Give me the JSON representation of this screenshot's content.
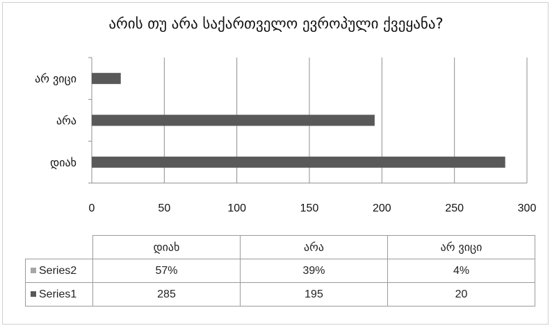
{
  "chart_data": {
    "type": "bar",
    "orientation": "horizontal",
    "title": "არის თუ არა საქართველო ევროპული ქვეყანა?",
    "categories": [
      "დიახ",
      "არა",
      "არ ვიცი"
    ],
    "series": [
      {
        "name": "Series1",
        "values": [
          285,
          195,
          20
        ],
        "color": "#595959",
        "plotted": true
      },
      {
        "name": "Series2",
        "values": [
          "57%",
          "39%",
          "4%"
        ],
        "color": "#a6a6a6",
        "plotted": false
      }
    ],
    "xlim": [
      0,
      300
    ],
    "x_ticks": [
      0,
      50,
      100,
      150,
      200,
      250,
      300
    ],
    "grid": "vertical",
    "legend": "data-table",
    "data_table": {
      "headers": [
        "დიახ",
        "არა",
        "არ ვიცი"
      ],
      "rows": [
        {
          "label": "Series2",
          "values": [
            "57%",
            "39%",
            "4%"
          ]
        },
        {
          "label": "Series1",
          "values": [
            "285",
            "195",
            "20"
          ]
        }
      ]
    }
  }
}
